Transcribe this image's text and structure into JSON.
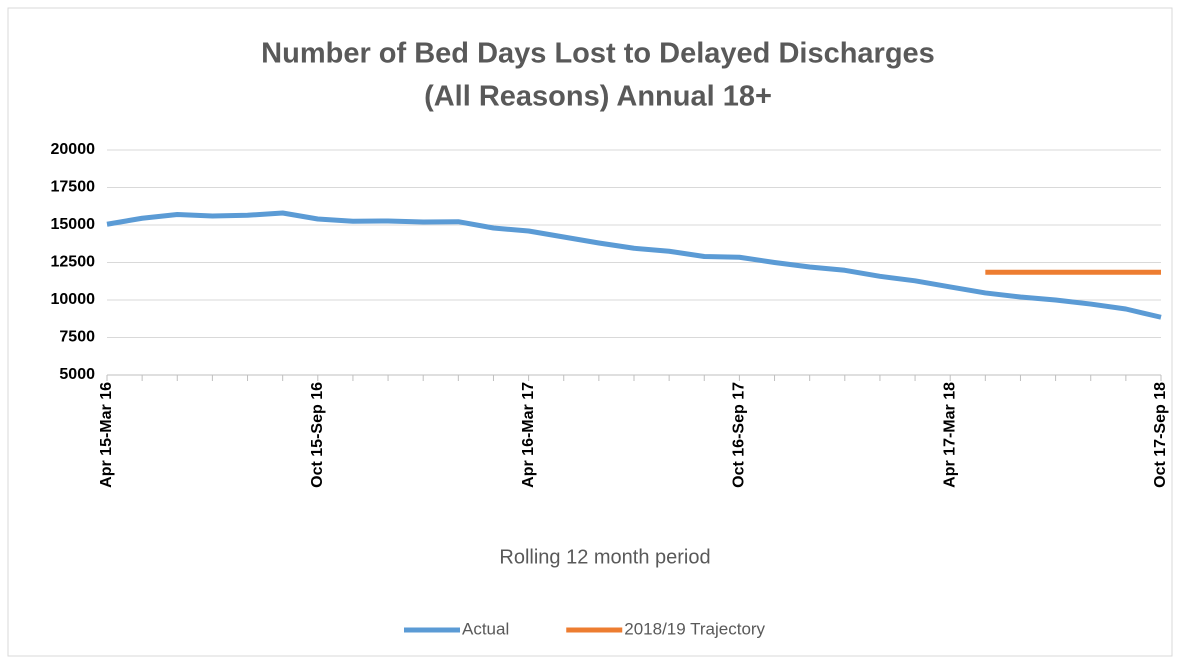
{
  "chart_data": {
    "type": "line",
    "title": [
      "Number of Bed Days Lost to Delayed Discharges",
      "(All Reasons)  Annual 18+"
    ],
    "x_label": "Rolling 12 month period",
    "categories": [
      "Apr 15-Mar 16",
      null,
      null,
      null,
      null,
      null,
      "Oct 15-Sep 16",
      null,
      null,
      null,
      null,
      null,
      "Apr 16-Mar 17",
      null,
      null,
      null,
      null,
      null,
      "Oct 16-Sep 17",
      null,
      null,
      null,
      null,
      null,
      "Apr 17-Mar 18",
      null,
      null,
      null,
      null,
      null,
      "Oct 17-Sep 18"
    ],
    "series": [
      {
        "name": "Actual",
        "color": "#5b9bd5",
        "values": [
          15050,
          15450,
          15700,
          15600,
          15650,
          15800,
          15400,
          15250,
          15270,
          15200,
          15220,
          14800,
          14600,
          14200,
          13800,
          13450,
          13250,
          12900,
          12850,
          12500,
          12200,
          11980,
          11580,
          11280,
          10870,
          10470,
          10200,
          10000,
          9730,
          9400,
          8850
        ]
      },
      {
        "name": "2018/19 Trajectory",
        "color": "#ed7d31",
        "values": [
          null,
          null,
          null,
          null,
          null,
          null,
          null,
          null,
          null,
          null,
          null,
          null,
          null,
          null,
          null,
          null,
          null,
          null,
          null,
          null,
          null,
          null,
          null,
          null,
          null,
          11850,
          11850,
          11850,
          11850,
          11850,
          11850
        ]
      }
    ],
    "ylim": [
      5000,
      20000
    ],
    "yticks": [
      5000,
      7500,
      10000,
      12500,
      15000,
      17500,
      20000
    ],
    "grid": true,
    "legend": "bottom"
  }
}
